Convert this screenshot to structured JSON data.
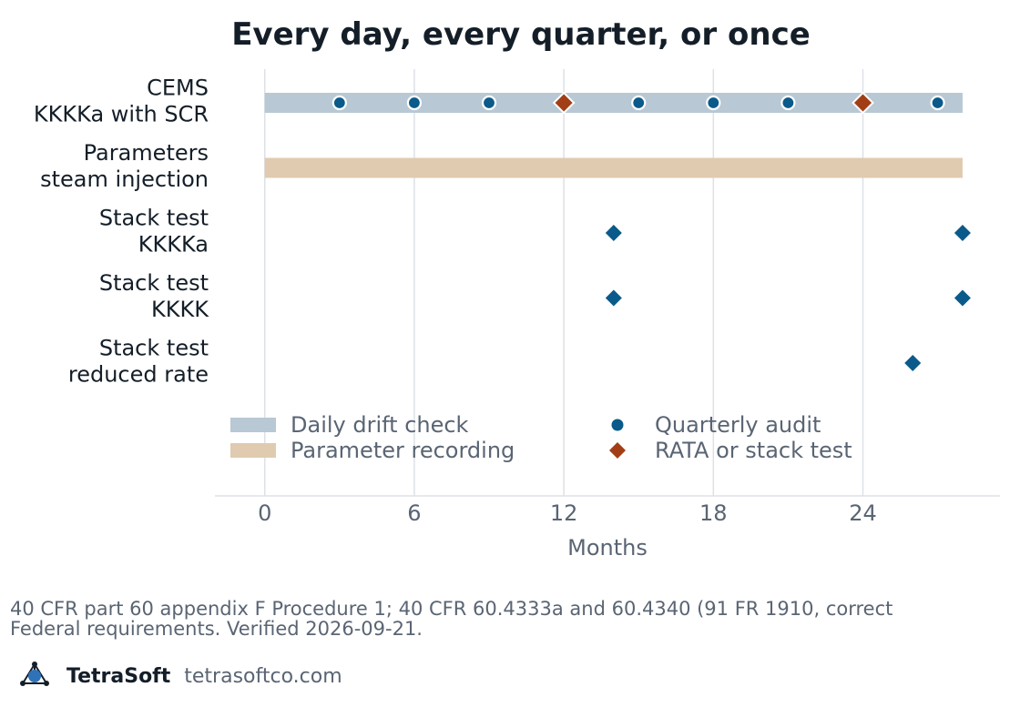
{
  "chart_data": {
    "type": "timeline",
    "title": "Every day, every quarter, or once",
    "xlabel": "Months",
    "ylabel": "",
    "xlim": [
      -2,
      29.5
    ],
    "x_ticks": [
      0,
      6,
      12,
      18,
      24
    ],
    "grid": "vertical",
    "rows": [
      {
        "label_lines": [
          "CEMS",
          "KKKKa with SCR"
        ],
        "bar": {
          "series": "Daily drift check",
          "start": 0,
          "end": 28
        },
        "quarterly_audits": [
          3,
          6,
          9,
          15,
          18,
          21,
          27
        ],
        "rata_or_stack_tests": [
          12,
          24
        ]
      },
      {
        "label_lines": [
          "Parameters",
          "steam injection"
        ],
        "bar": {
          "series": "Parameter recording",
          "start": 0,
          "end": 28
        },
        "quarterly_audits": [],
        "rata_or_stack_tests": []
      },
      {
        "label_lines": [
          "Stack test",
          "KKKKa"
        ],
        "bar": null,
        "quarterly_audits": [],
        "stack_tests": [
          14,
          28
        ]
      },
      {
        "label_lines": [
          "Stack test",
          "KKKK"
        ],
        "bar": null,
        "quarterly_audits": [],
        "stack_tests": [
          14,
          28
        ]
      },
      {
        "label_lines": [
          "Stack test",
          "reduced rate"
        ],
        "bar": null,
        "quarterly_audits": [],
        "stack_tests": [
          26
        ]
      }
    ],
    "legend": {
      "placement": "bottom inside plot, two columns",
      "items": [
        {
          "label": "Daily drift check",
          "shape": "bar",
          "color": "#b8c8d4"
        },
        {
          "label": "Quarterly audit",
          "shape": "circle",
          "color": "#0a5a8a"
        },
        {
          "label": "Parameter recording",
          "shape": "bar",
          "color": "#e0cbb0"
        },
        {
          "label": "RATA or stack test",
          "shape": "diamond",
          "color": "#a23e16"
        }
      ]
    },
    "colors": {
      "drift_bar": "#b8c8d4",
      "param_bar": "#e0cbb0",
      "quarterly": "#0a5a8a",
      "rata": "#a23e16",
      "stack_test": "#0a5a8a",
      "grid": "#dde1e7",
      "axis_text": "#5a6573",
      "title": "#141e28"
    }
  },
  "footer": {
    "source_line1": "40 CFR part 60 appendix F Procedure 1; 40 CFR 60.4333a and 60.4340 (91 FR 1910, correct",
    "source_line2": "Federal requirements. Verified 2026-09-21."
  },
  "brand": {
    "name": "TetraSoft",
    "url": "tetrasoftco.com",
    "logo_icon": "tetrahedron-molecule-icon"
  }
}
